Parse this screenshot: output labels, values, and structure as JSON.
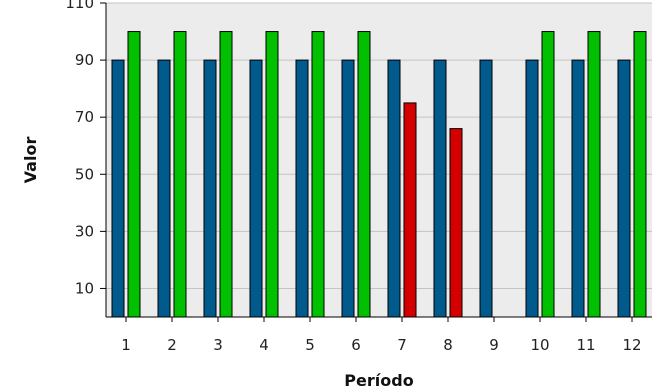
{
  "chart_data": {
    "type": "bar",
    "title": "",
    "xlabel": "Período",
    "ylabel": "Valor",
    "categories": [
      "1",
      "2",
      "3",
      "4",
      "5",
      "6",
      "7",
      "8",
      "9",
      "10",
      "11",
      "12"
    ],
    "yticks": [
      10,
      30,
      50,
      70,
      90,
      110
    ],
    "ylim": [
      0,
      110
    ],
    "grid": true,
    "series": [
      {
        "color": "#005a8c",
        "values": [
          90,
          90,
          90,
          90,
          90,
          90,
          90,
          90,
          90,
          90,
          90,
          90
        ]
      },
      {
        "colors": [
          "#00c000",
          "#00c000",
          "#00c000",
          "#00c000",
          "#00c000",
          "#00c000",
          "#d40000",
          "#d40000",
          "#00c000",
          "#00c000",
          "#00c000",
          "#00c000"
        ],
        "values": [
          100,
          100,
          100,
          100,
          100,
          100,
          75,
          66,
          null,
          100,
          100,
          100
        ]
      }
    ],
    "colors": {
      "plot_background": "#ececec",
      "grid": "#c4c4c4"
    }
  }
}
